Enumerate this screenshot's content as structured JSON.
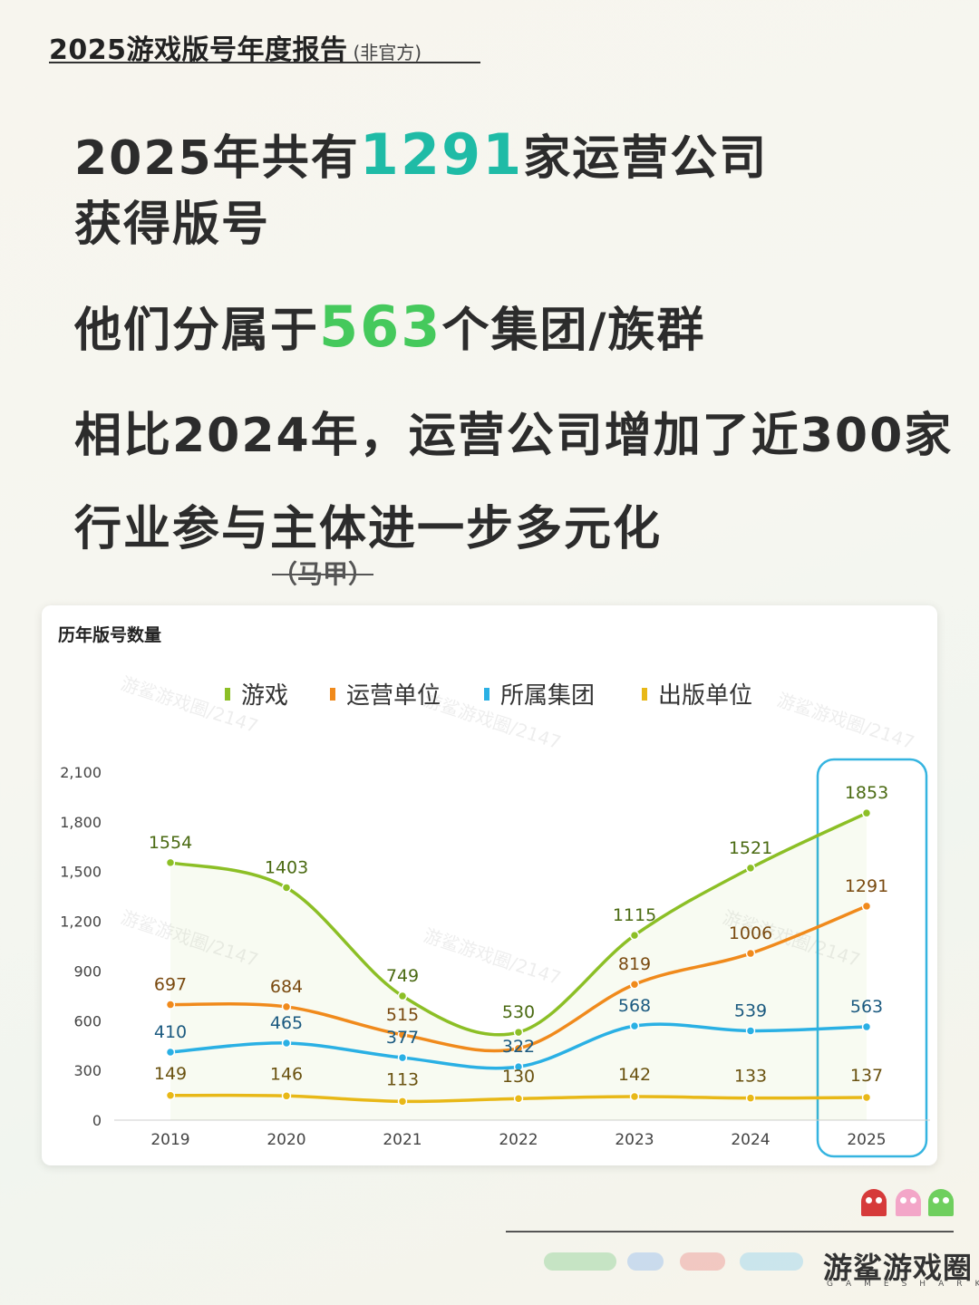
{
  "header": {
    "title": "2025游戏版号年度报告",
    "subtitle": "(非官方)"
  },
  "headlines": {
    "line1_pre": "2025年共有",
    "line1_num": "1291",
    "line1_post": "家运营公司",
    "line2": "获得版号",
    "line3_pre": "他们分属于",
    "line3_num": "563",
    "line3_post": "个集团/族群",
    "line4": "相比2024年，运营公司增加了近300家",
    "line5": "行业参与主体进一步多元化",
    "strike": "（马甲）"
  },
  "chart_data": {
    "type": "line",
    "title": "历年版号数量",
    "categories": [
      "2019",
      "2020",
      "2021",
      "2022",
      "2023",
      "2024",
      "2025"
    ],
    "ylim": [
      0,
      2100
    ],
    "yticks": [
      "0",
      "300",
      "600",
      "900",
      "1,200",
      "1,500",
      "1,800",
      "2,100"
    ],
    "grid": false,
    "legend_position": "top",
    "highlight_category": "2025",
    "series": [
      {
        "name": "游戏",
        "color": "#8cbf26",
        "values": [
          1554,
          1403,
          749,
          530,
          1115,
          1521,
          1853
        ]
      },
      {
        "name": "运营单位",
        "color": "#f08a1c",
        "values": [
          697,
          684,
          515,
          433,
          819,
          1006,
          1291
        ]
      },
      {
        "name": "所属集团",
        "color": "#2ab0e4",
        "values": [
          410,
          465,
          377,
          322,
          568,
          539,
          563
        ]
      },
      {
        "name": "出版单位",
        "color": "#e8b817",
        "values": [
          149,
          146,
          113,
          130,
          142,
          133,
          137
        ]
      }
    ],
    "data_labels": [
      [
        "1554",
        "1403",
        "749",
        "530",
        "1115",
        "1521",
        "1853"
      ],
      [
        "697",
        "684",
        "515",
        "",
        "819",
        "1006",
        "1291"
      ],
      [
        "410",
        "465",
        "377",
        "322",
        "568",
        "539",
        "563"
      ],
      [
        "149",
        "146",
        "113",
        "130",
        "142",
        "133",
        "137"
      ]
    ],
    "label_colors": [
      "#4a6a12",
      "#7a4a10",
      "#1b5a80",
      "#6a5210"
    ],
    "watermark": "游鲨游戏圈/2147"
  },
  "footer": {
    "brand": "游鲨游戏圈",
    "brand_sub": "GAMESHARK"
  },
  "colors": {
    "teal": "#1fbba6",
    "green": "#45c95c",
    "highlight": "#35b4e0"
  }
}
